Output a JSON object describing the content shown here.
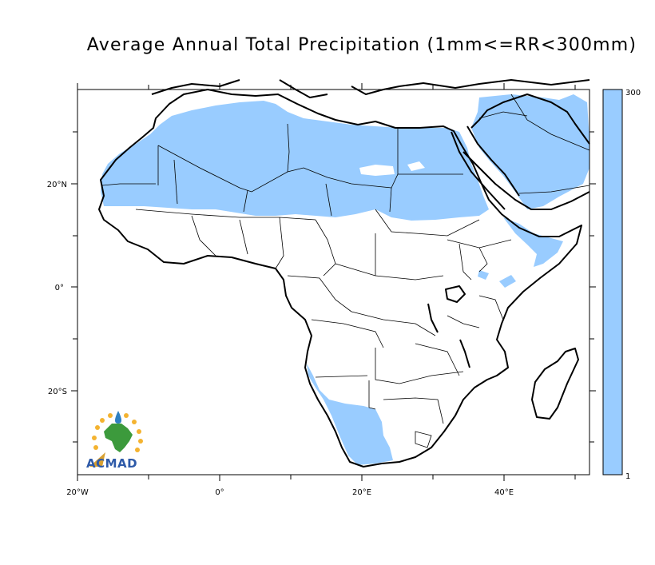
{
  "title": "Average Annual Total Precipitation (1mm<=RR<300mm)",
  "axes": {
    "x_labels": [
      "20°W",
      "0°",
      "20°E",
      "40°E"
    ],
    "y_labels": [
      "20°N",
      "0°",
      "20°S"
    ]
  },
  "colorbar": {
    "max_label": "300",
    "min_label": "1",
    "color": "#99ccff"
  },
  "logo": {
    "text": "ACMAD"
  },
  "colors": {
    "precip_fill": "#99ccff",
    "land_outline": "#000000",
    "ocean": "#ffffff"
  }
}
